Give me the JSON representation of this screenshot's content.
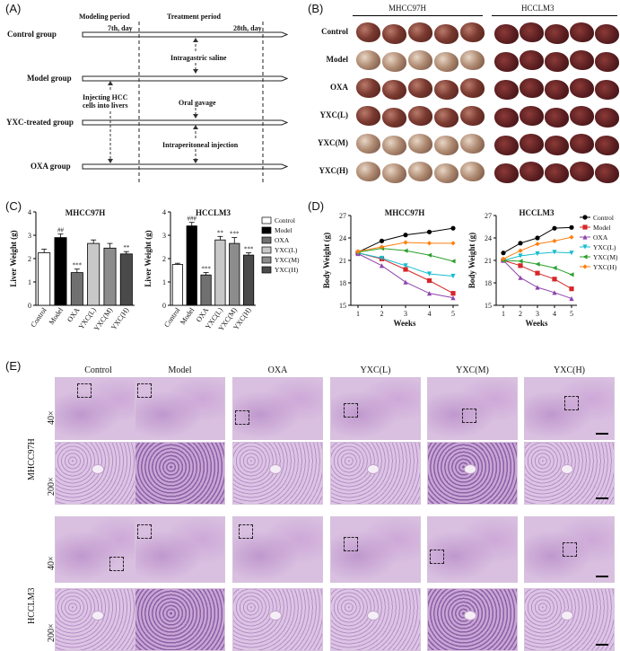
{
  "panel_labels": {
    "A": "(A)",
    "B": "(B)",
    "C": "(C)",
    "D": "(D)",
    "E": "(E)"
  },
  "panelA": {
    "phase_modeling": "Modeling period",
    "phase_treatment": "Treatment period",
    "day7": "7th, day",
    "day28": "28th, day",
    "groups": [
      "Control group",
      "Model group",
      "YXC-treated group",
      "OXA group"
    ],
    "notes": {
      "saline": "Intragastric saline",
      "injecting_line1": "Injecting HCC",
      "injecting_line2": "cells into livers",
      "gavage": "Oral gavage",
      "ip": "Intraperitoneal injection"
    }
  },
  "panelB": {
    "cell_lines": [
      "MHCC97H",
      "HCCLM3"
    ],
    "groups": [
      "Control",
      "Model",
      "OXA",
      "YXC(L)",
      "YXC(M)",
      "YXC(H)"
    ]
  },
  "panelE": {
    "columns": [
      "Control",
      "Model",
      "OXA",
      "YXC(L)",
      "YXC(M)",
      "YXC(H)"
    ],
    "cell_lines": [
      "MHCC97H",
      "HCCLM3"
    ],
    "magnifications": [
      "40×",
      "200×"
    ]
  },
  "chart_data": [
    {
      "type": "bar",
      "title": "MHCC97H",
      "ylabel": "Liver Weight (g)",
      "categories": [
        "Control",
        "Model",
        "OXA",
        "YXC(L)",
        "YXC(M)",
        "YXC(H)"
      ],
      "values": [
        2.25,
        2.9,
        1.4,
        2.65,
        2.45,
        2.2
      ],
      "errors": [
        0.15,
        0.15,
        0.15,
        0.15,
        0.2,
        0.1
      ],
      "annotations": [
        "",
        "##",
        "***",
        "",
        "",
        "**"
      ],
      "ylim": [
        0,
        4
      ],
      "yticks": [
        "0",
        "1",
        "2",
        "3",
        "4"
      ],
      "colors": [
        "#ffffff",
        "#000000",
        "#707070",
        "#c8c8c8",
        "#8c8c8c",
        "#4a4a4a"
      ]
    },
    {
      "type": "bar",
      "title": "HCCLM3",
      "ylabel": "Liver Weight (g)",
      "categories": [
        "Control",
        "Model",
        "OXA",
        "YXC(L)",
        "YXC(M)",
        "YXC(H)"
      ],
      "values": [
        1.75,
        3.4,
        1.3,
        2.8,
        2.65,
        2.15
      ],
      "errors": [
        0.05,
        0.15,
        0.1,
        0.15,
        0.25,
        0.1
      ],
      "annotations": [
        "",
        "###",
        "***",
        "**",
        "***",
        "***"
      ],
      "ylim": [
        0,
        4
      ],
      "yticks": [
        "0",
        "1",
        "2",
        "3",
        "4"
      ],
      "colors": [
        "#ffffff",
        "#000000",
        "#707070",
        "#c8c8c8",
        "#8c8c8c",
        "#4a4a4a"
      ],
      "legend": [
        "Control",
        "Model",
        "OXA",
        "YXC(L)",
        "YXC(M)",
        "YXC(H)"
      ]
    },
    {
      "type": "line",
      "title": "MHCC97H",
      "xlabel": "Weeks",
      "ylabel": "Body Weight (g)",
      "x": [
        1,
        2,
        3,
        4,
        5
      ],
      "xticks": [
        "1",
        "2",
        "3",
        "4",
        "5"
      ],
      "ylim": [
        15,
        27
      ],
      "yticks": [
        "15",
        "18",
        "21",
        "24",
        "27"
      ],
      "series": [
        {
          "name": "Control",
          "color": "#000000",
          "marker": "circle",
          "values": [
            22.1,
            23.6,
            24.4,
            24.8,
            25.3
          ]
        },
        {
          "name": "Model",
          "color": "#d62728",
          "marker": "square",
          "values": [
            22.0,
            21.2,
            19.8,
            18.3,
            16.6
          ]
        },
        {
          "name": "OXA",
          "color": "#8e44ad",
          "marker": "triangle",
          "values": [
            21.9,
            20.3,
            18.1,
            16.6,
            16.0
          ]
        },
        {
          "name": "YXC(L)",
          "color": "#17becf",
          "marker": "triangle-down",
          "values": [
            22.0,
            21.3,
            20.3,
            19.2,
            18.9
          ]
        },
        {
          "name": "YXC(M)",
          "color": "#2ca02c",
          "marker": "triangle-left",
          "values": [
            22.1,
            22.6,
            22.3,
            21.7,
            20.9
          ]
        },
        {
          "name": "YXC(H)",
          "color": "#ff7f0e",
          "marker": "diamond",
          "values": [
            22.2,
            22.8,
            23.4,
            23.3,
            23.3
          ]
        }
      ]
    },
    {
      "type": "line",
      "title": "HCCLM3",
      "xlabel": "Weeks",
      "ylabel": "Body Weight (g)",
      "x": [
        1,
        2,
        3,
        4,
        5
      ],
      "xticks": [
        "1",
        "2",
        "3",
        "4",
        "5"
      ],
      "ylim": [
        15,
        27
      ],
      "yticks": [
        "15",
        "18",
        "21",
        "24",
        "27"
      ],
      "series": [
        {
          "name": "Control",
          "color": "#000000",
          "marker": "circle",
          "values": [
            22.0,
            23.3,
            24.0,
            25.3,
            25.4
          ]
        },
        {
          "name": "Model",
          "color": "#d62728",
          "marker": "square",
          "values": [
            21.0,
            20.3,
            19.3,
            18.5,
            17.2
          ]
        },
        {
          "name": "OXA",
          "color": "#8e44ad",
          "marker": "triangle",
          "values": [
            21.0,
            18.7,
            17.4,
            16.7,
            15.9
          ]
        },
        {
          "name": "YXC(L)",
          "color": "#17becf",
          "marker": "triangle-down",
          "values": [
            21.0,
            21.6,
            21.9,
            22.1,
            22.0
          ]
        },
        {
          "name": "YXC(M)",
          "color": "#2ca02c",
          "marker": "triangle-left",
          "values": [
            21.0,
            20.9,
            20.5,
            20.0,
            19.1
          ]
        },
        {
          "name": "YXC(H)",
          "color": "#ff7f0e",
          "marker": "diamond",
          "values": [
            21.2,
            22.3,
            23.2,
            23.6,
            24.1
          ]
        }
      ],
      "legend": [
        "Control",
        "Model",
        "OXA",
        "YXC(L)",
        "YXC(M)",
        "YXC(H)"
      ]
    }
  ]
}
